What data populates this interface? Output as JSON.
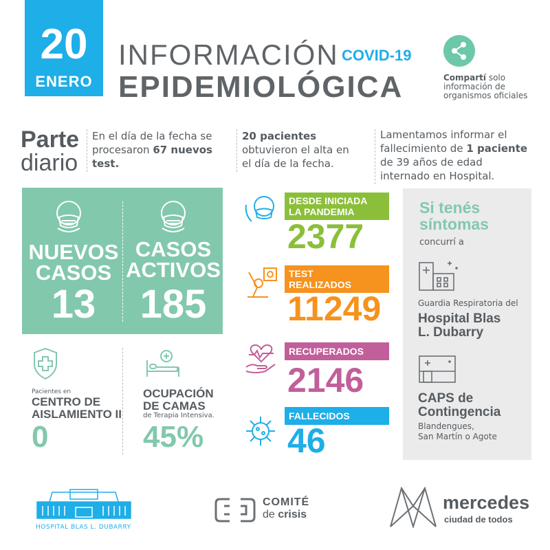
{
  "date": {
    "day": "20",
    "month": "ENERO"
  },
  "title": {
    "line1": "INFORMACIÓN",
    "covid": "COVID-19",
    "line2": "EPIDEMIOLÓGICA"
  },
  "share": {
    "bold": "Compartí",
    "rest1": " solo",
    "rest2": "información de",
    "rest3": "organismos oficiales"
  },
  "parte": {
    "line1": "Parte",
    "line2": "diario"
  },
  "parte_texts": {
    "p1a": "En el día de la fecha se",
    "p1b": "procesaron ",
    "p1b_bold": "67 nuevos",
    "p1c_bold": "test.",
    "p2a_bold": "20 pacientes",
    "p2b": "obtuvieron el alta en",
    "p2c": "el día de la fecha.",
    "p3a": "Lamentamos informar el",
    "p3b": "fallecimiento de ",
    "p3b_bold": "1 paciente",
    "p3c": "de 39 años de edad",
    "p3d": "internado en Hospital."
  },
  "green_panel": {
    "col1_label1": "NUEVOS",
    "col1_label2": "CASOS",
    "col1_value": "13",
    "col2_label1": "CASOS",
    "col2_label2": "ACTIVOS",
    "col2_value": "185"
  },
  "aislamiento": {
    "small": "Pacientes en",
    "label1": "CENTRO DE",
    "label2": "AISLAMIENTO II",
    "value": "0"
  },
  "camas": {
    "label1": "OCUPACIÓN",
    "label2": "DE CAMAS",
    "small": "de Terapia Intensiva.",
    "value": "45%"
  },
  "stats": {
    "pandemia": {
      "label1": "DESDE INICIADA",
      "label2": "LA PANDEMIA",
      "value": "2377"
    },
    "test": {
      "label1": "TEST",
      "label2": "REALIZADOS",
      "value": "11249"
    },
    "recuperados": {
      "label": "RECUPERADOS",
      "value": "2146"
    },
    "fallecidos": {
      "label": "FALLECIDOS",
      "value": "46"
    }
  },
  "sintomas": {
    "line1": "Si tenés",
    "line2": "síntomas",
    "concurri": "concurrí a",
    "guardia": "Guardia Respiratoria del",
    "hospital1": "Hospital Blas",
    "hospital2": "L. Dubarry",
    "caps1": "CAPS de",
    "caps2": "Contingencia",
    "caps_addr1": "Blandengues,",
    "caps_addr2": "San Martín o Agote"
  },
  "footer": {
    "hospital": "HOSPITAL BLAS L. DUBARRY",
    "comite1": "COMITÉ",
    "comite2_de": "de ",
    "comite2_crisis": "crisis",
    "mercedes": "mercedes",
    "mercedes_sub": "ciudad de todos"
  },
  "colors": {
    "blue": "#1eaee8",
    "green": "#82c8ad",
    "olive": "#8bbf3a",
    "orange": "#f6921e",
    "pink": "#c15f9a",
    "cyan": "#1eaee8",
    "gray": "#555b60"
  }
}
